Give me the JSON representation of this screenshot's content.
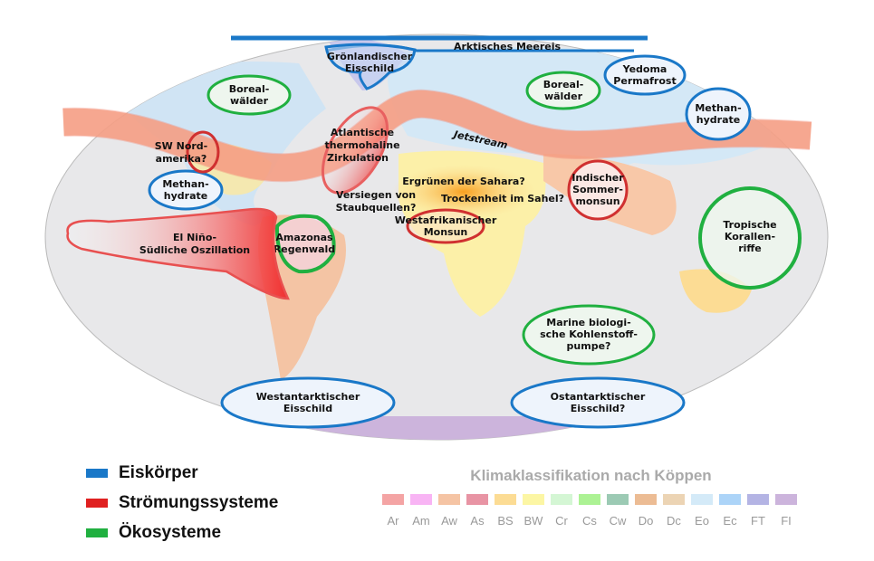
{
  "map": {
    "jetstream": "Jetstream",
    "arctic_sea_ice": "Arktisches Meereis",
    "greenland": [
      "Grönlandischer",
      "Eisschild"
    ],
    "boreal_left": [
      "Boreal-",
      "wälder"
    ],
    "boreal_right": [
      "Boreal-",
      "wälder"
    ],
    "yedoma": [
      "Yedoma",
      "Permafrost"
    ],
    "methane_right": [
      "Methan-",
      "hydrate"
    ],
    "methane_left": [
      "Methan-",
      "hydrate"
    ],
    "sw_north_america": [
      "SW Nord-",
      "amerika?"
    ],
    "amoc": [
      "Atlantische",
      "thermohaline",
      "Zirkulation"
    ],
    "sahara": "Ergrünen der Sahara?",
    "dust": [
      "Versiegen von",
      "Staubquellen?"
    ],
    "sahel": "Trockenheit im Sahel?",
    "wam": [
      "Westafrikanischer",
      "Monsun"
    ],
    "indian_monsoon": [
      "Indischer",
      "Sommer-",
      "monsun"
    ],
    "enso": [
      "El Niño-",
      "Südliche Oszillation"
    ],
    "amazon": [
      "Amazonas",
      "Regenwald"
    ],
    "coral": [
      "Tropische",
      "Korallen-",
      "riffe"
    ],
    "marine_pump": [
      "Marine biologi-",
      "sche Kohlenstoff-",
      "pumpe?"
    ],
    "west_antarctic": [
      "Westantarktischer",
      "Eisschild"
    ],
    "east_antarctic": [
      "Ostantarktischer",
      "Eisschild?"
    ]
  },
  "colors": {
    "ice": "#1a78c8",
    "circulation": "#e02020",
    "ecosystem": "#20b040"
  },
  "legend": [
    {
      "label": "Eiskörper",
      "color": "#1a78c8"
    },
    {
      "label": "Strömungssysteme",
      "color": "#e02020"
    },
    {
      "label": "Ökosysteme",
      "color": "#20b040"
    }
  ],
  "koppen": {
    "title": "Klimaklassifikation nach Köppen",
    "classes": [
      {
        "code": "Ar",
        "color": "#f4a4a4"
      },
      {
        "code": "Am",
        "color": "#f8b4f4"
      },
      {
        "code": "Aw",
        "color": "#f5c4a4"
      },
      {
        "code": "As",
        "color": "#e894a4"
      },
      {
        "code": "BS",
        "color": "#fcdc94"
      },
      {
        "code": "BW",
        "color": "#fcf6a4"
      },
      {
        "code": "Cr",
        "color": "#d4f6d4"
      },
      {
        "code": "Cs",
        "color": "#acf294"
      },
      {
        "code": "Cw",
        "color": "#9ccab4"
      },
      {
        "code": "Do",
        "color": "#ecbc94"
      },
      {
        "code": "Dc",
        "color": "#ecd4b4"
      },
      {
        "code": "Eo",
        "color": "#d4eaf8"
      },
      {
        "code": "Ec",
        "color": "#acd4f8"
      },
      {
        "code": "FT",
        "color": "#b4b4e4"
      },
      {
        "code": "FI",
        "color": "#ccb4dc"
      }
    ]
  }
}
